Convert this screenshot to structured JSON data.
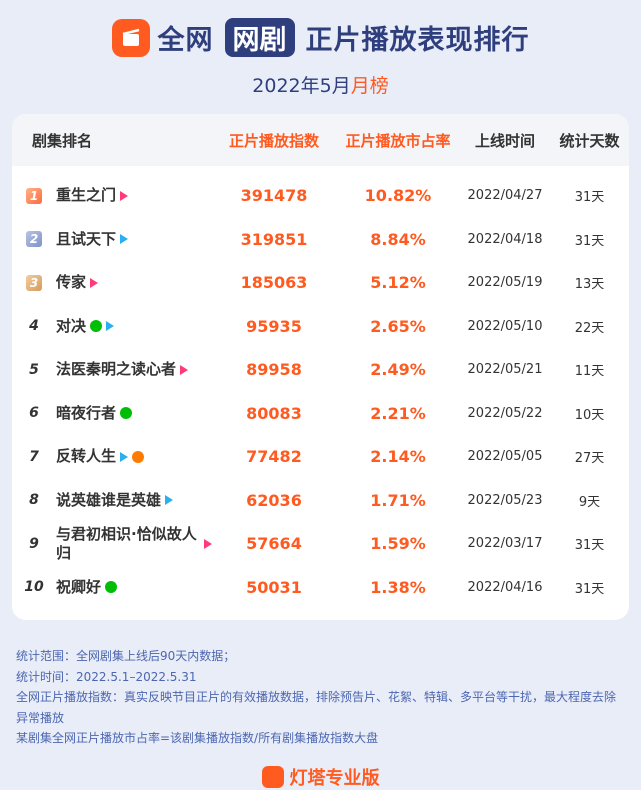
{
  "header": {
    "title_pre": "全网",
    "title_pill": "网剧",
    "title_post": "正片播放表现排行",
    "subtitle_main": "2022年5月",
    "subtitle_hl": "月榜"
  },
  "table": {
    "columns": [
      "剧集排名",
      "正片播放指数",
      "正片播放市占率",
      "上线时间",
      "统计天数"
    ],
    "rows": [
      {
        "rank": "1",
        "name": "重生之门",
        "platforms": [
          "tri-red"
        ],
        "index": "391478",
        "share": "10.82%",
        "date": "2022/04/27",
        "days": "31天"
      },
      {
        "rank": "2",
        "name": "且试天下",
        "platforms": [
          "tri-blue"
        ],
        "index": "319851",
        "share": "8.84%",
        "date": "2022/04/18",
        "days": "31天"
      },
      {
        "rank": "3",
        "name": "传家",
        "platforms": [
          "tri-red"
        ],
        "index": "185063",
        "share": "5.12%",
        "date": "2022/05/19",
        "days": "13天"
      },
      {
        "rank": "4",
        "name": "对决",
        "platforms": [
          "iq",
          "tri-blue"
        ],
        "index": "95935",
        "share": "2.65%",
        "date": "2022/05/10",
        "days": "22天"
      },
      {
        "rank": "5",
        "name": "法医秦明之读心者",
        "platforms": [
          "tri-red"
        ],
        "index": "89958",
        "share": "2.49%",
        "date": "2022/05/21",
        "days": "11天"
      },
      {
        "rank": "6",
        "name": "暗夜行者",
        "platforms": [
          "iq"
        ],
        "index": "80083",
        "share": "2.21%",
        "date": "2022/05/22",
        "days": "10天"
      },
      {
        "rank": "7",
        "name": "反转人生",
        "platforms": [
          "tri-blue",
          "mg"
        ],
        "index": "77482",
        "share": "2.14%",
        "date": "2022/05/05",
        "days": "27天"
      },
      {
        "rank": "8",
        "name": "说英雄谁是英雄",
        "platforms": [
          "tri-blue"
        ],
        "index": "62036",
        "share": "1.71%",
        "date": "2022/05/23",
        "days": "9天"
      },
      {
        "rank": "9",
        "name": "与君初相识·恰似故人归",
        "platforms": [
          "tri-red"
        ],
        "index": "57664",
        "share": "1.59%",
        "date": "2022/03/17",
        "days": "31天"
      },
      {
        "rank": "10",
        "name": "祝卿好",
        "platforms": [
          "iq"
        ],
        "index": "50031",
        "share": "1.38%",
        "date": "2022/04/16",
        "days": "31天"
      }
    ]
  },
  "notes": [
    "统计范围：全网剧集上线后90天内数据；",
    "统计时间：2022.5.1–2022.5.31",
    "全网正片播放指数：真实反映节目正片的有效播放数据，排除预告片、花絮、特辑、多平台等干扰，最大程度去除异常播放",
    "某剧集全网正片播放市占率=该剧集播放指数/所有剧集播放指数大盘"
  ],
  "brand": "灯塔专业版",
  "colors": {
    "accent": "#ff5a1f",
    "navy": "#2f3f7d",
    "note": "#4c67b0"
  }
}
